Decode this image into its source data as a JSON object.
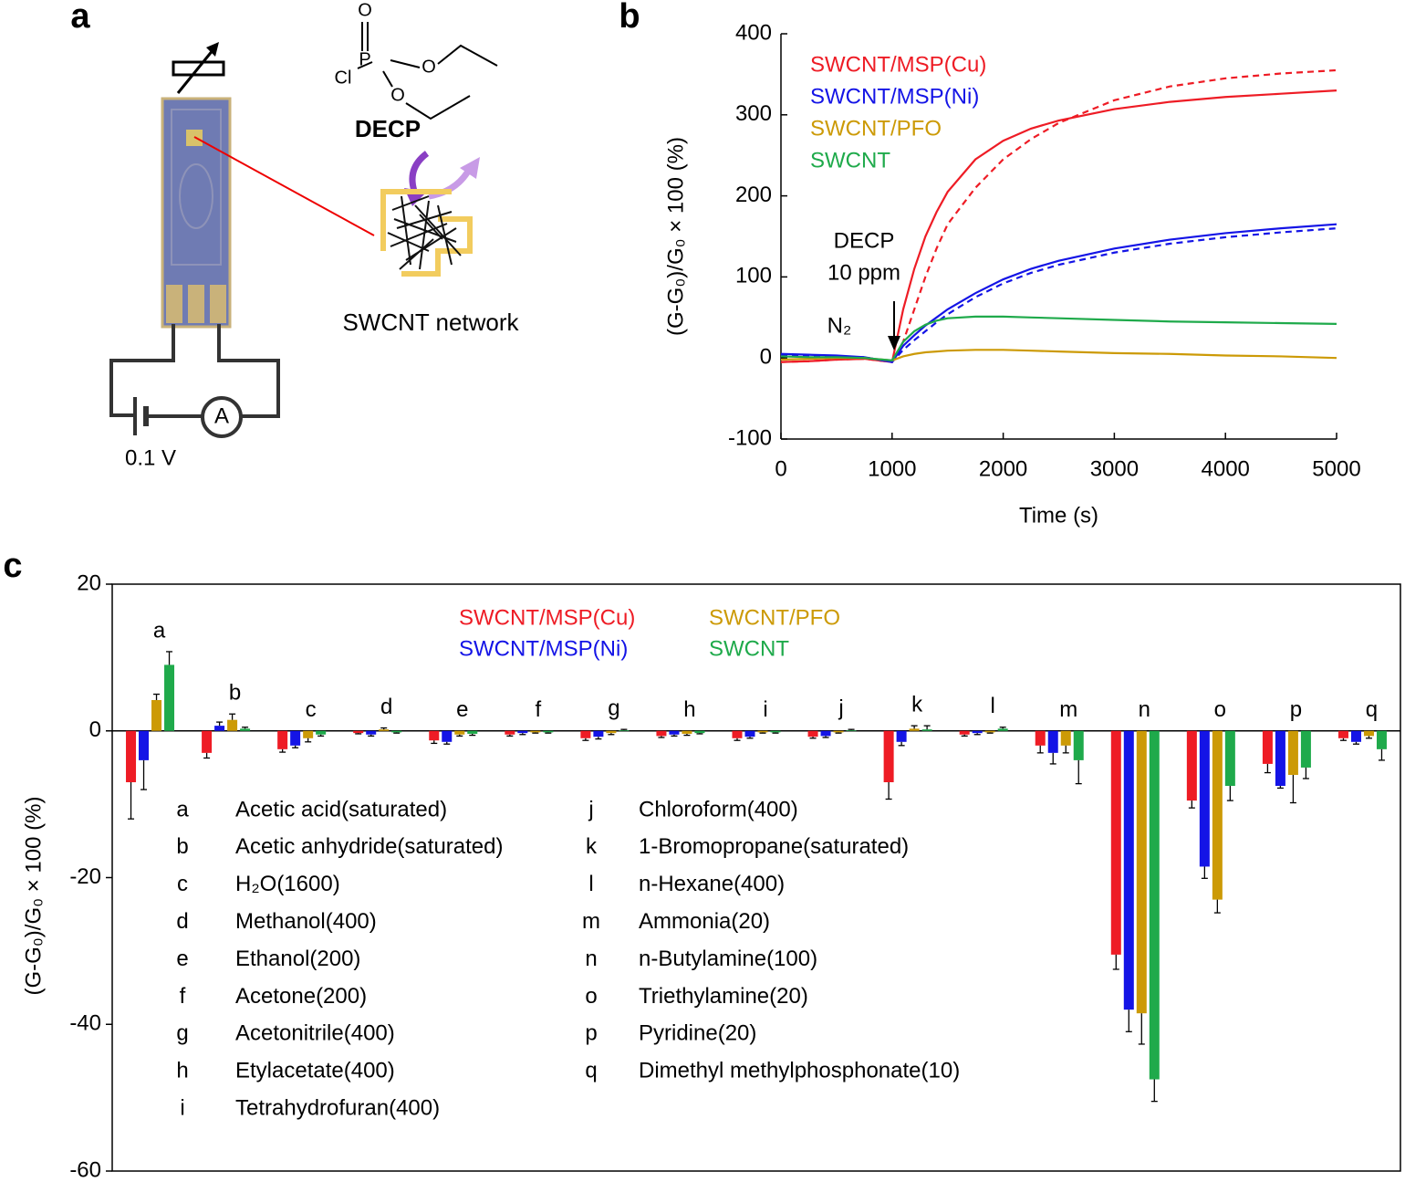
{
  "figure": {
    "panel_labels": [
      "a",
      "b",
      "c"
    ],
    "atoms": [
      "O",
      "P",
      "Cl",
      "O",
      "O"
    ],
    "molecule": "DECP",
    "network": "SWCNT network",
    "voltage": "0.1 V",
    "meter": "A"
  },
  "chart_data": [
    {
      "type": "line",
      "x_label": "Time (s)",
      "y_label": "(G-G₀)/G₀ × 100 (%)",
      "annotations": [
        "DECP",
        "10 ppm",
        "N₂"
      ],
      "legend": "top-left",
      "x": [
        0,
        250,
        500,
        750,
        1000,
        1100,
        1200,
        1300,
        1400,
        1500,
        1750,
        2000,
        2250,
        2500,
        3000,
        3500,
        4000,
        4500,
        5000
      ],
      "series": [
        {
          "name": "SWCNT/MSP(Cu)",
          "color": "#ee1c25",
          "dash": false,
          "values": [
            -5,
            -4,
            -2,
            -1,
            -5,
            60,
            110,
            150,
            180,
            205,
            245,
            268,
            283,
            293,
            307,
            316,
            322,
            326,
            330
          ]
        },
        {
          "color": "#ee1c25",
          "dash": true,
          "values": [
            -5,
            -4,
            -2,
            -1,
            -5,
            20,
            60,
            100,
            135,
            165,
            210,
            245,
            270,
            290,
            318,
            335,
            345,
            351,
            355
          ]
        },
        {
          "name": "SWCNT/MSP(Ni)",
          "color": "#1414e6",
          "dash": false,
          "values": [
            5,
            4,
            3,
            1,
            -5,
            15,
            28,
            40,
            50,
            60,
            80,
            97,
            110,
            120,
            135,
            146,
            154,
            160,
            165
          ]
        },
        {
          "color": "#1414e6",
          "dash": true,
          "values": [
            3,
            3,
            2,
            1,
            -5,
            10,
            22,
            33,
            44,
            54,
            75,
            92,
            105,
            115,
            130,
            141,
            149,
            155,
            160
          ]
        },
        {
          "name": "SWCNT/PFO",
          "color": "#cc9a06",
          "dash": false,
          "values": [
            -2,
            -1,
            0,
            0,
            -3,
            2,
            5,
            7,
            8,
            9,
            10,
            10,
            9,
            8,
            6,
            5,
            3,
            2,
            0
          ]
        },
        {
          "name": "SWCNT",
          "color": "#1faa4b",
          "dash": false,
          "values": [
            2,
            1,
            1,
            0,
            -3,
            20,
            33,
            41,
            46,
            49,
            51,
            51,
            50,
            49,
            47,
            45,
            44,
            43,
            42
          ]
        }
      ],
      "xlim": [
        0,
        5000
      ],
      "xticks": [
        0,
        1000,
        2000,
        3000,
        4000,
        5000
      ],
      "ylim": [
        -100,
        400
      ],
      "yticks": [
        -100,
        0,
        100,
        200,
        300,
        400
      ]
    },
    {
      "type": "bar",
      "y_label": "(G-G₀)/G₀ × 100 (%)",
      "categories": [
        "a",
        "b",
        "c",
        "d",
        "e",
        "f",
        "g",
        "h",
        "i",
        "j",
        "k",
        "l",
        "m",
        "n",
        "o",
        "p",
        "q"
      ],
      "compounds": [
        "Acetic acid(saturated)",
        "Acetic anhydride(saturated)",
        "H₂O(1600)",
        "Methanol(400)",
        "Ethanol(200)",
        "Acetone(200)",
        "Acetonitrile(400)",
        "Etylacetate(400)",
        "Tetrahydrofuran(400)",
        "Chloroform(400)",
        "1-Bromopropane(saturated)",
        "n-Hexane(400)",
        "Ammonia(20)",
        "n-Butylamine(100)",
        "Triethylamine(20)",
        "Pyridine(20)",
        "Dimethyl methylphosphonate(10)"
      ],
      "series": [
        {
          "name": "SWCNT/MSP(Cu)",
          "color": "#ee1c25",
          "values": [
            -7,
            -3,
            -2.5,
            -0.3,
            -1.3,
            -0.5,
            -1,
            -0.7,
            -1,
            -0.8,
            -7,
            -0.5,
            -2,
            -30.5,
            -9.5,
            -4.5,
            -1
          ],
          "errors": [
            5,
            0.7,
            0.4,
            0.1,
            0.4,
            0.2,
            0.3,
            0.2,
            0.3,
            0.2,
            2.3,
            0.2,
            1,
            2,
            1,
            1.2,
            0.3
          ]
        },
        {
          "name": "SWCNT/MSP(Ni)",
          "color": "#1414e6",
          "values": [
            -4,
            0.7,
            -2,
            -0.5,
            -1.5,
            -0.3,
            -0.8,
            -0.5,
            -0.8,
            -0.7,
            -1.5,
            -0.3,
            -3,
            -38,
            -18.5,
            -7.5,
            -1.5
          ],
          "errors": [
            4,
            0.5,
            0.3,
            0.2,
            0.3,
            0.2,
            0.3,
            0.2,
            0.2,
            0.2,
            0.5,
            0.2,
            1.5,
            3,
            1.6,
            0.3,
            0.3
          ]
        },
        {
          "name": "SWCNT/PFO",
          "color": "#cc9a06",
          "values": [
            4.2,
            1.5,
            -1,
            0.2,
            -0.5,
            -0.2,
            -0.3,
            -0.4,
            -0.2,
            -0.2,
            0.3,
            -0.2,
            -2,
            -38.5,
            -23,
            -6,
            -0.7
          ],
          "errors": [
            0.8,
            0.8,
            0.5,
            0.2,
            0.2,
            0.1,
            0.2,
            0.2,
            0.1,
            0.1,
            0.4,
            0.1,
            1,
            4.2,
            1.8,
            3.8,
            0.3
          ]
        },
        {
          "name": "SWCNT",
          "color": "#1faa4b",
          "values": [
            9,
            0.3,
            -0.5,
            -0.2,
            -0.4,
            -0.2,
            0.1,
            -0.3,
            -0.2,
            0.1,
            0.2,
            0.3,
            -4,
            -47.5,
            -7.5,
            -5,
            -2.5
          ],
          "errors": [
            1.8,
            0.2,
            0.2,
            0.1,
            0.2,
            0.1,
            0.1,
            0.1,
            0.1,
            0.1,
            0.5,
            0.2,
            3.2,
            3,
            2,
            1.5,
            1.5
          ]
        }
      ],
      "ylim": [
        -60,
        20
      ],
      "yticks": [
        -60,
        -40,
        -20,
        0,
        20
      ]
    }
  ]
}
